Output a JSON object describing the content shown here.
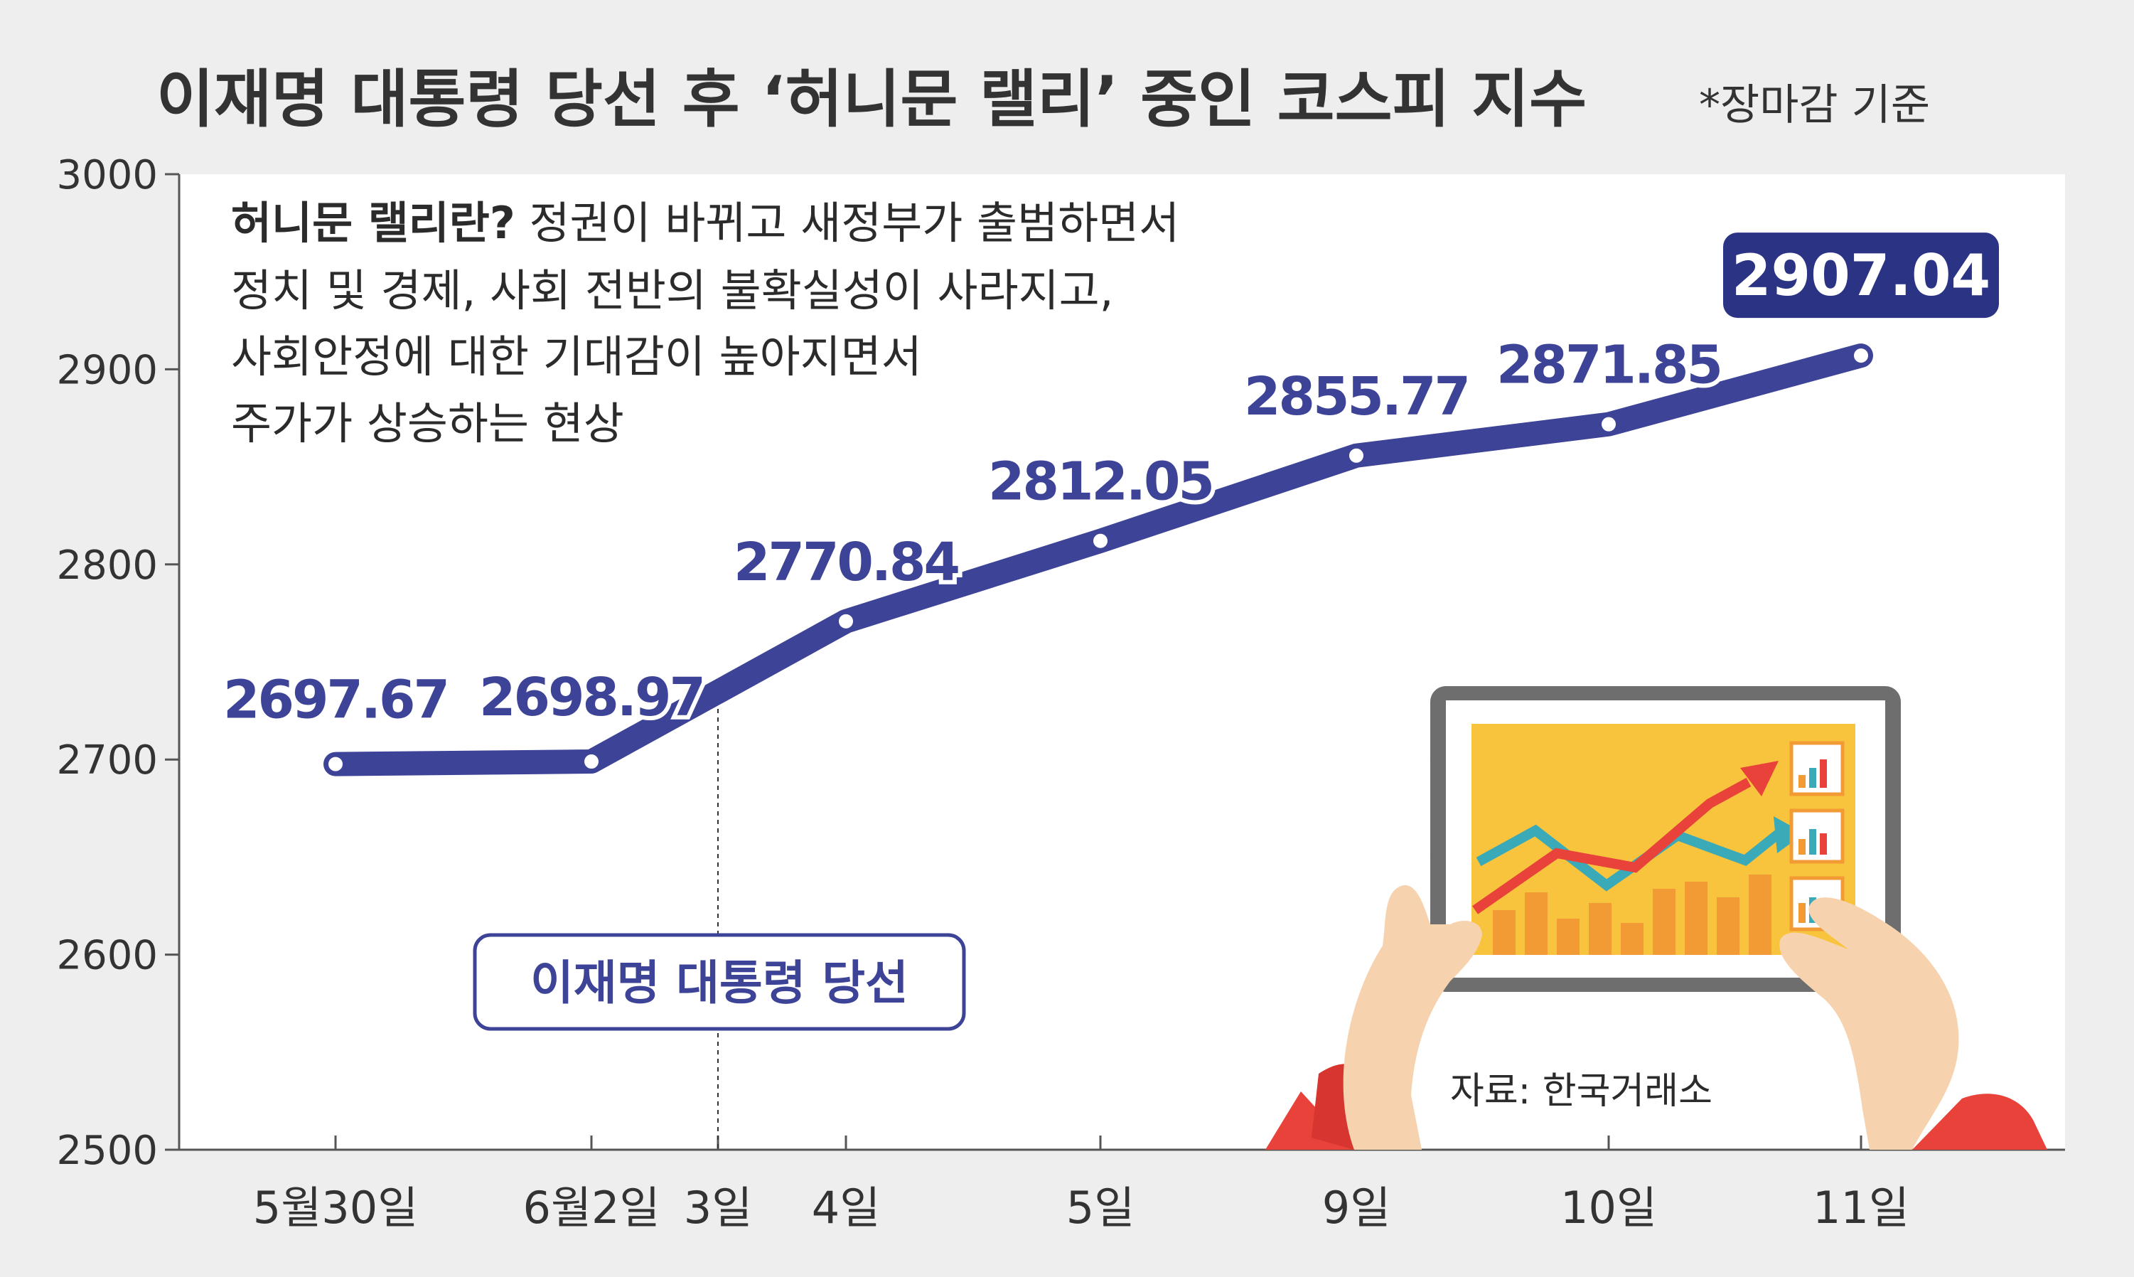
{
  "title": "이재명 대통령 당선 후 ‘허니문 랠리’ 중인 코스피 지수",
  "subtitle": "*장마감 기준",
  "note": {
    "heading": "허니문 랠리란?",
    "lines": [
      " 정권이 바뀌고 새정부가 출범하면서",
      "정치 및 경제, 사회 전반의 불확실성이 사라지고,",
      "사회안정에 대한 기대감이 높아지면서",
      "주가가 상승하는 현상"
    ]
  },
  "event_label": "이재명 대통령 당선",
  "source": "자료: 한국거래소",
  "colors": {
    "background": "#eeeeee",
    "stripe": "#ffffff",
    "line": "#3d4396",
    "highlight_box": "#2b3385",
    "axis": "#555555"
  },
  "icons": [
    "tablet-chart-illustration",
    "hand-icon"
  ],
  "chart_data": {
    "type": "line",
    "categories": [
      "5월30일",
      "6월2일",
      "4일",
      "5일",
      "9일",
      "10일",
      "11일"
    ],
    "values": [
      2697.67,
      2698.97,
      2770.84,
      2812.05,
      2855.77,
      2871.85,
      2907.04
    ],
    "value_labels": [
      "2697.67",
      "2698.97",
      "2770.84",
      "2812.05",
      "2855.77",
      "2871.85",
      "2907.04"
    ],
    "highlight_index": 6,
    "event_tick": "3일",
    "y_ticks": [
      "3000",
      "2900",
      "2800",
      "2700",
      "2600",
      "2500"
    ],
    "ylim": [
      2500,
      3000
    ],
    "grid": "horizontal bands",
    "xlabel": "",
    "ylabel": ""
  }
}
